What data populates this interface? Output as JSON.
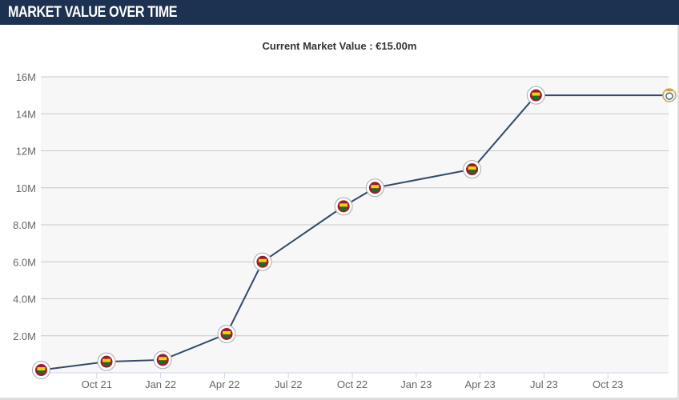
{
  "header": {
    "title": "MARKET VALUE OVER TIME"
  },
  "chart_data": {
    "type": "line",
    "title": "Current Market Value : €15.00m",
    "xlabel": "",
    "ylabel": "",
    "ylim": [
      0,
      16000000
    ],
    "y_ticks": [
      "2.0M",
      "4.0M",
      "6.0M",
      "8.0M",
      "10M",
      "12M",
      "14M",
      "16M"
    ],
    "x_ticks": [
      "Oct 21",
      "Jan 22",
      "Apr 22",
      "Jul 22",
      "Oct 22",
      "Jan 23",
      "Apr 23",
      "Jul 23",
      "Oct 23"
    ],
    "grid": true,
    "series": [
      {
        "name": "Market value",
        "color": "#32496b",
        "points": [
          {
            "date": "2021-07-13",
            "value": 150000,
            "club": "fenerbahce"
          },
          {
            "date": "2021-10-15",
            "value": 600000,
            "club": "fenerbahce"
          },
          {
            "date": "2022-01-04",
            "value": 700000,
            "club": "fenerbahce"
          },
          {
            "date": "2022-04-04",
            "value": 2100000,
            "club": "fenerbahce"
          },
          {
            "date": "2022-05-25",
            "value": 6000000,
            "club": "fenerbahce"
          },
          {
            "date": "2022-09-19",
            "value": 9000000,
            "club": "fenerbahce"
          },
          {
            "date": "2022-11-03",
            "value": 10000000,
            "club": "fenerbahce"
          },
          {
            "date": "2023-03-20",
            "value": 11000000,
            "club": "fenerbahce"
          },
          {
            "date": "2023-06-20",
            "value": 15000000,
            "club": "fenerbahce"
          },
          {
            "date": "2023-12-28",
            "value": 15000000,
            "club": "real-madrid"
          }
        ]
      }
    ]
  }
}
